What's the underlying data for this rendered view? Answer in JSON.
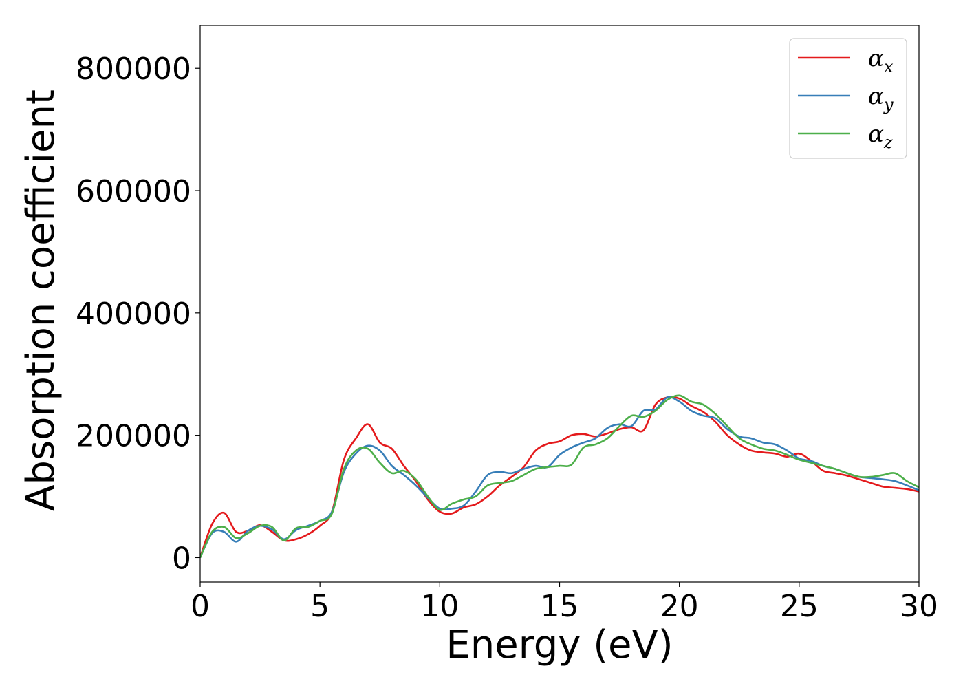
{
  "chart_data": {
    "type": "line",
    "title": "",
    "xlabel": "Energy (eV)",
    "ylabel": "Absorption coefficient",
    "xlim": [
      0,
      30
    ],
    "ylim": [
      -40000,
      870000
    ],
    "xticks": [
      0,
      5,
      10,
      15,
      20,
      25,
      30
    ],
    "yticks": [
      0,
      200000,
      400000,
      600000,
      800000
    ],
    "grid": false,
    "legend_position": "top-right",
    "x": [
      0,
      0.5,
      1,
      1.5,
      2,
      2.5,
      3,
      3.5,
      4,
      4.5,
      5,
      5.5,
      6,
      6.5,
      7,
      7.5,
      8,
      8.5,
      9,
      9.5,
      10,
      10.5,
      11,
      11.5,
      12,
      12.5,
      13,
      13.5,
      14,
      14.5,
      15,
      15.5,
      16,
      16.5,
      17,
      17.5,
      18,
      18.5,
      19,
      19.5,
      20,
      20.5,
      21,
      21.5,
      22,
      22.5,
      23,
      23.5,
      24,
      24.5,
      25,
      25.5,
      26,
      26.5,
      27,
      27.5,
      28,
      28.5,
      29,
      29.5,
      30
    ],
    "series": [
      {
        "name": "αx",
        "label_main": "α",
        "label_sub": "x",
        "color": "#e41a1c",
        "values": [
          0,
          55000,
          73000,
          42000,
          44000,
          53000,
          42000,
          28000,
          30000,
          38000,
          52000,
          75000,
          160000,
          195000,
          218000,
          188000,
          178000,
          150000,
          125000,
          95000,
          75000,
          72000,
          82000,
          87000,
          100000,
          118000,
          132000,
          148000,
          175000,
          186000,
          190000,
          200000,
          202000,
          198000,
          203000,
          210000,
          213000,
          208000,
          250000,
          262000,
          260000,
          248000,
          238000,
          222000,
          200000,
          185000,
          175000,
          172000,
          170000,
          165000,
          170000,
          158000,
          142000,
          138000,
          134000,
          128000,
          122000,
          116000,
          114000,
          112000,
          108000
        ]
      },
      {
        "name": "αy",
        "label_main": "α",
        "label_sub": "y",
        "color": "#377eb8",
        "values": [
          0,
          40000,
          42000,
          26000,
          44000,
          52000,
          46000,
          30000,
          45000,
          52000,
          60000,
          75000,
          140000,
          170000,
          183000,
          175000,
          150000,
          135000,
          118000,
          98000,
          80000,
          80000,
          85000,
          108000,
          135000,
          140000,
          138000,
          145000,
          150000,
          148000,
          168000,
          180000,
          188000,
          195000,
          212000,
          218000,
          215000,
          240000,
          242000,
          262000,
          255000,
          240000,
          232000,
          228000,
          210000,
          198000,
          195000,
          188000,
          185000,
          175000,
          162000,
          158000,
          150000,
          145000,
          138000,
          132000,
          130000,
          128000,
          125000,
          118000,
          110000
        ]
      },
      {
        "name": "αz",
        "label_main": "α",
        "label_sub": "z",
        "color": "#4daf4a",
        "values": [
          0,
          42000,
          50000,
          32000,
          40000,
          52000,
          50000,
          28000,
          48000,
          50000,
          60000,
          72000,
          145000,
          175000,
          178000,
          155000,
          138000,
          142000,
          128000,
          100000,
          78000,
          88000,
          95000,
          100000,
          118000,
          122000,
          125000,
          135000,
          145000,
          148000,
          150000,
          152000,
          180000,
          185000,
          195000,
          215000,
          232000,
          230000,
          240000,
          258000,
          265000,
          255000,
          250000,
          235000,
          215000,
          195000,
          185000,
          178000,
          175000,
          168000,
          160000,
          155000,
          150000,
          145000,
          138000,
          132000,
          132000,
          135000,
          138000,
          125000,
          115000
        ]
      }
    ]
  }
}
